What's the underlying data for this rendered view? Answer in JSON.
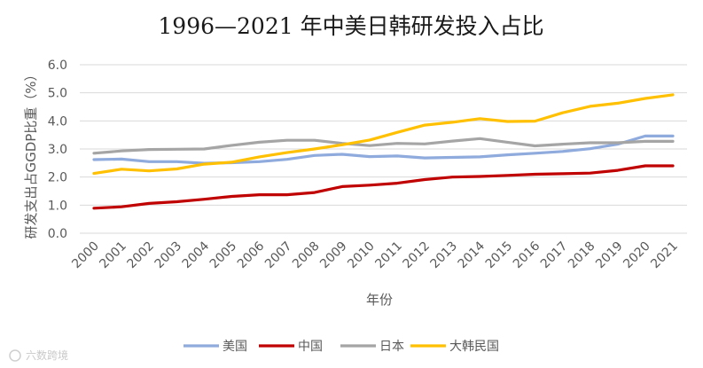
{
  "chart_data": {
    "type": "line",
    "title": "1996—2021 年中美日韩研发投入占比",
    "xlabel": "年份",
    "ylabel": "研发支出占GGDP比重（%）",
    "ylim": [
      0,
      6
    ],
    "yticks": [
      "0.0",
      "1.0",
      "2.0",
      "3.0",
      "4.0",
      "5.0",
      "6.0"
    ],
    "categories": [
      "2000",
      "2001",
      "2002",
      "2003",
      "2004",
      "2005",
      "2006",
      "2007",
      "2008",
      "2009",
      "2010",
      "2011",
      "2012",
      "2013",
      "2014",
      "2015",
      "2016",
      "2017",
      "2018",
      "2019",
      "2020",
      "2021"
    ],
    "grid": true,
    "legend_position": "bottom",
    "series": [
      {
        "name": "美国",
        "color": "#8FAADC",
        "values": [
          2.62,
          2.64,
          2.55,
          2.55,
          2.49,
          2.51,
          2.55,
          2.63,
          2.77,
          2.81,
          2.73,
          2.75,
          2.68,
          2.7,
          2.72,
          2.79,
          2.85,
          2.91,
          3.01,
          3.17,
          3.46,
          3.46
        ]
      },
      {
        "name": "中国",
        "color": "#C00000",
        "values": [
          0.89,
          0.94,
          1.06,
          1.12,
          1.21,
          1.31,
          1.37,
          1.37,
          1.45,
          1.66,
          1.71,
          1.78,
          1.91,
          2.0,
          2.02,
          2.06,
          2.1,
          2.12,
          2.14,
          2.24,
          2.4,
          2.4
        ]
      },
      {
        "name": "日本",
        "color": "#A5A5A5",
        "values": [
          2.85,
          2.93,
          2.98,
          2.99,
          3.0,
          3.13,
          3.24,
          3.31,
          3.31,
          3.2,
          3.12,
          3.2,
          3.18,
          3.28,
          3.37,
          3.24,
          3.11,
          3.17,
          3.22,
          3.22,
          3.27,
          3.27
        ]
      },
      {
        "name": "大韩民国",
        "color": "#FFC000",
        "values": [
          2.13,
          2.28,
          2.22,
          2.29,
          2.46,
          2.53,
          2.72,
          2.87,
          3.0,
          3.15,
          3.32,
          3.59,
          3.85,
          3.95,
          4.08,
          3.98,
          3.99,
          4.29,
          4.52,
          4.63,
          4.8,
          4.93
        ]
      }
    ]
  },
  "watermark": "六数跨境"
}
